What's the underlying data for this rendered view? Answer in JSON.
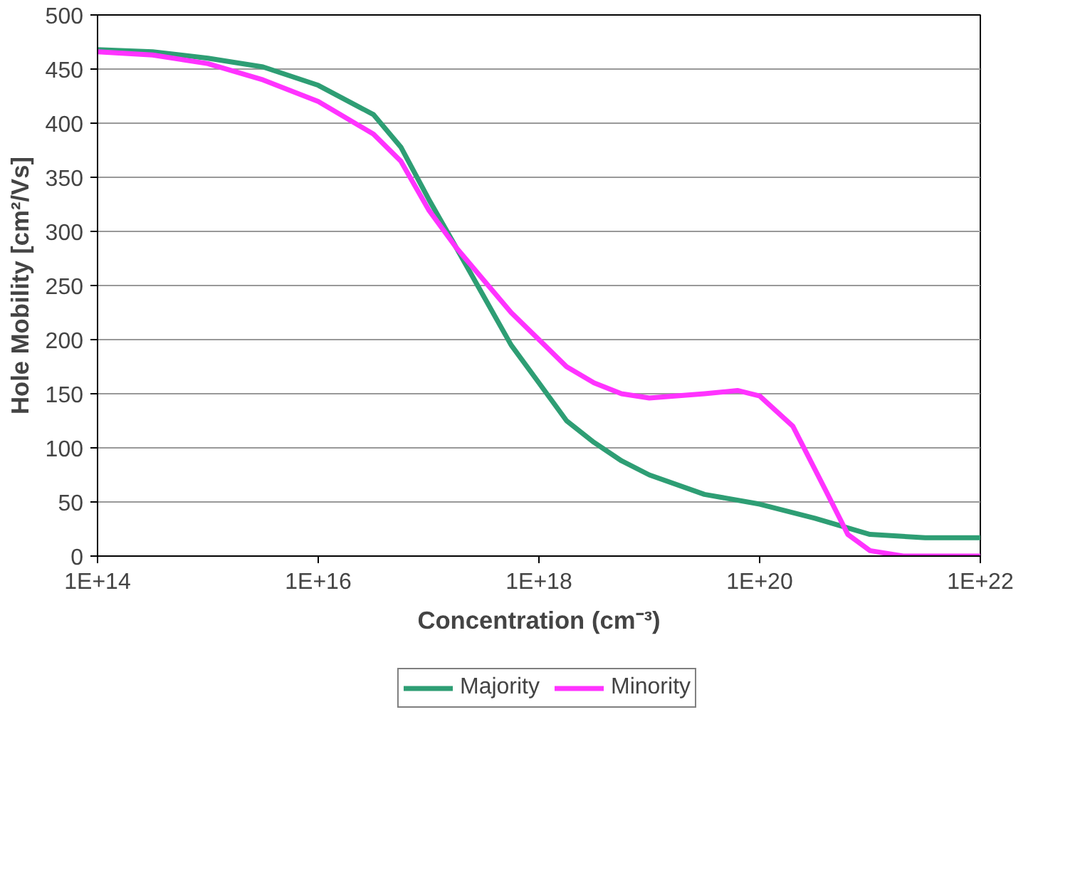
{
  "chart_data": {
    "type": "line",
    "xlabel": "Concentration (cm⁻³)",
    "ylabel": "Hole Mobility [cm²/Vs]",
    "log": "x",
    "xlim": [
      100000000000000.0,
      1e+22
    ],
    "ylim": [
      0,
      500
    ],
    "xticks": [
      {
        "value": 100000000000000.0,
        "label": "1E+14"
      },
      {
        "value": 1e+16,
        "label": "1E+16"
      },
      {
        "value": 1e+18,
        "label": "1E+18"
      },
      {
        "value": 1e+20,
        "label": "1E+20"
      },
      {
        "value": 1e+22,
        "label": "1E+22"
      }
    ],
    "yticks": [
      0,
      50,
      100,
      150,
      200,
      250,
      300,
      350,
      400,
      450,
      500
    ],
    "grid": "y",
    "legend": "bottom",
    "line_style": "solid",
    "series": [
      {
        "name": "Majority",
        "color": "#2e9e74",
        "x": [
          100000000000000.0,
          316000000000000.0,
          1000000000000000.0,
          3160000000000000.0,
          1e+16,
          3.16e+16,
          5.6e+16,
          1e+17,
          1.78e+17,
          3.16e+17,
          5.6e+17,
          1e+18,
          1.78e+18,
          3.16e+18,
          5.6e+18,
          1e+19,
          3.16e+19,
          1e+20,
          3.16e+20,
          1e+21,
          3.16e+21,
          1e+22
        ],
        "values": [
          468,
          466,
          460,
          452,
          435,
          408,
          378,
          330,
          285,
          240,
          195,
          160,
          125,
          105,
          88,
          75,
          57,
          48,
          35,
          20,
          17,
          17
        ]
      },
      {
        "name": "Minority",
        "color": "#ff33ff",
        "x": [
          100000000000000.0,
          316000000000000.0,
          1000000000000000.0,
          3160000000000000.0,
          1e+16,
          3.16e+16,
          5.6e+16,
          1e+17,
          1.78e+17,
          3.16e+17,
          5.6e+17,
          1e+18,
          1.78e+18,
          3.16e+18,
          5.6e+18,
          1e+19,
          3.16e+19,
          6.3e+19,
          1e+20,
          2e+20,
          4e+20,
          6.3e+20,
          1e+21,
          2e+21,
          1e+22
        ],
        "values": [
          466,
          463,
          455,
          440,
          420,
          390,
          365,
          320,
          285,
          255,
          225,
          200,
          175,
          160,
          150,
          146,
          150,
          153,
          148,
          120,
          60,
          20,
          5,
          0,
          0
        ]
      }
    ]
  }
}
